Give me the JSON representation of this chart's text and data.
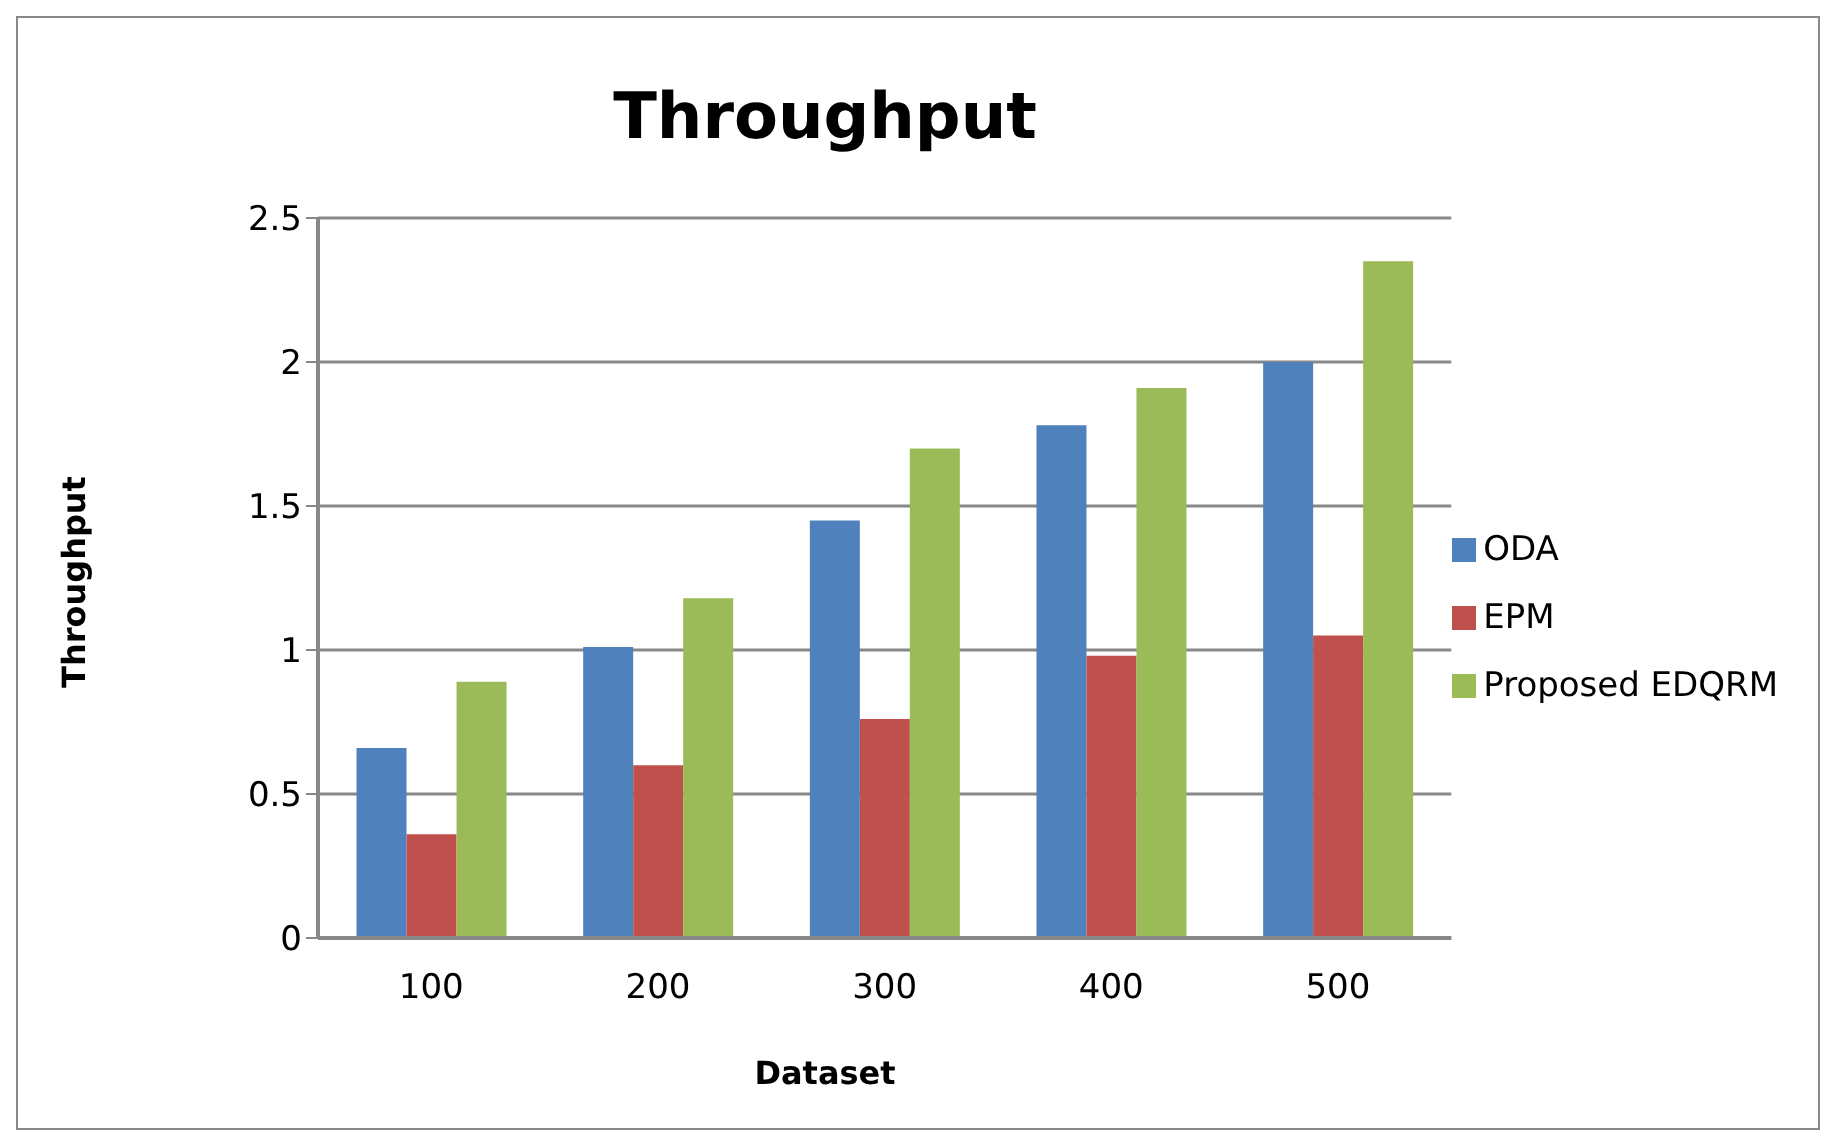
{
  "chart_data": {
    "type": "bar",
    "title": "Throughput",
    "xlabel": "Dataset",
    "ylabel": "Throughput",
    "categories": [
      "100",
      "200",
      "300",
      "400",
      "500"
    ],
    "series": [
      {
        "name": "ODA",
        "color": "#4f81bd",
        "values": [
          0.66,
          1.01,
          1.45,
          1.78,
          2.0
        ]
      },
      {
        "name": "EPM",
        "color": "#c0504d",
        "values": [
          0.36,
          0.6,
          0.76,
          0.98,
          1.05
        ]
      },
      {
        "name": "Proposed EDQRM",
        "color": "#9bbb59",
        "values": [
          0.89,
          1.18,
          1.7,
          1.91,
          2.35
        ]
      }
    ],
    "ylim": [
      0,
      2.5
    ],
    "yticks": [
      0,
      0.5,
      1,
      1.5,
      2,
      2.5
    ],
    "grid": "y",
    "legend": "right"
  }
}
